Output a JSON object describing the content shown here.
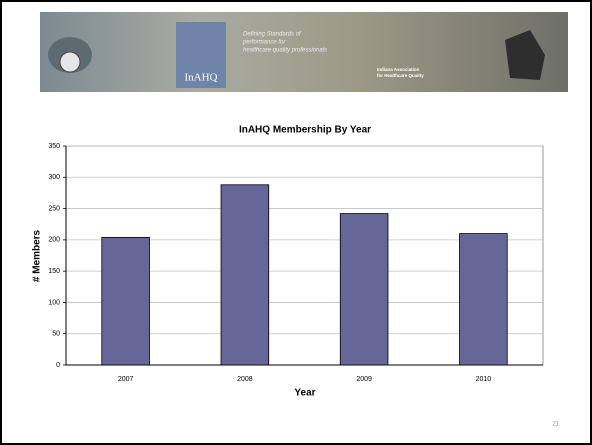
{
  "banner": {
    "logo": "InAHQ",
    "tagline": [
      "Defining Standards of",
      "performance for",
      "healthcare quality professionals"
    ],
    "organization": [
      "Indiana Association",
      "for Healthcare Quality"
    ]
  },
  "slide_number": "21",
  "chart_data": {
    "type": "bar",
    "title": "InAHQ Membership By Year",
    "x_label": "Year",
    "y_label": "# Members",
    "categories": [
      "2007",
      "2008",
      "2009",
      "2010"
    ],
    "values": [
      204,
      288,
      242,
      210
    ],
    "color": "#666699",
    "ylim": [
      0,
      350
    ],
    "yticks": [
      0,
      50,
      100,
      150,
      200,
      250,
      300,
      350
    ],
    "grid": true
  }
}
